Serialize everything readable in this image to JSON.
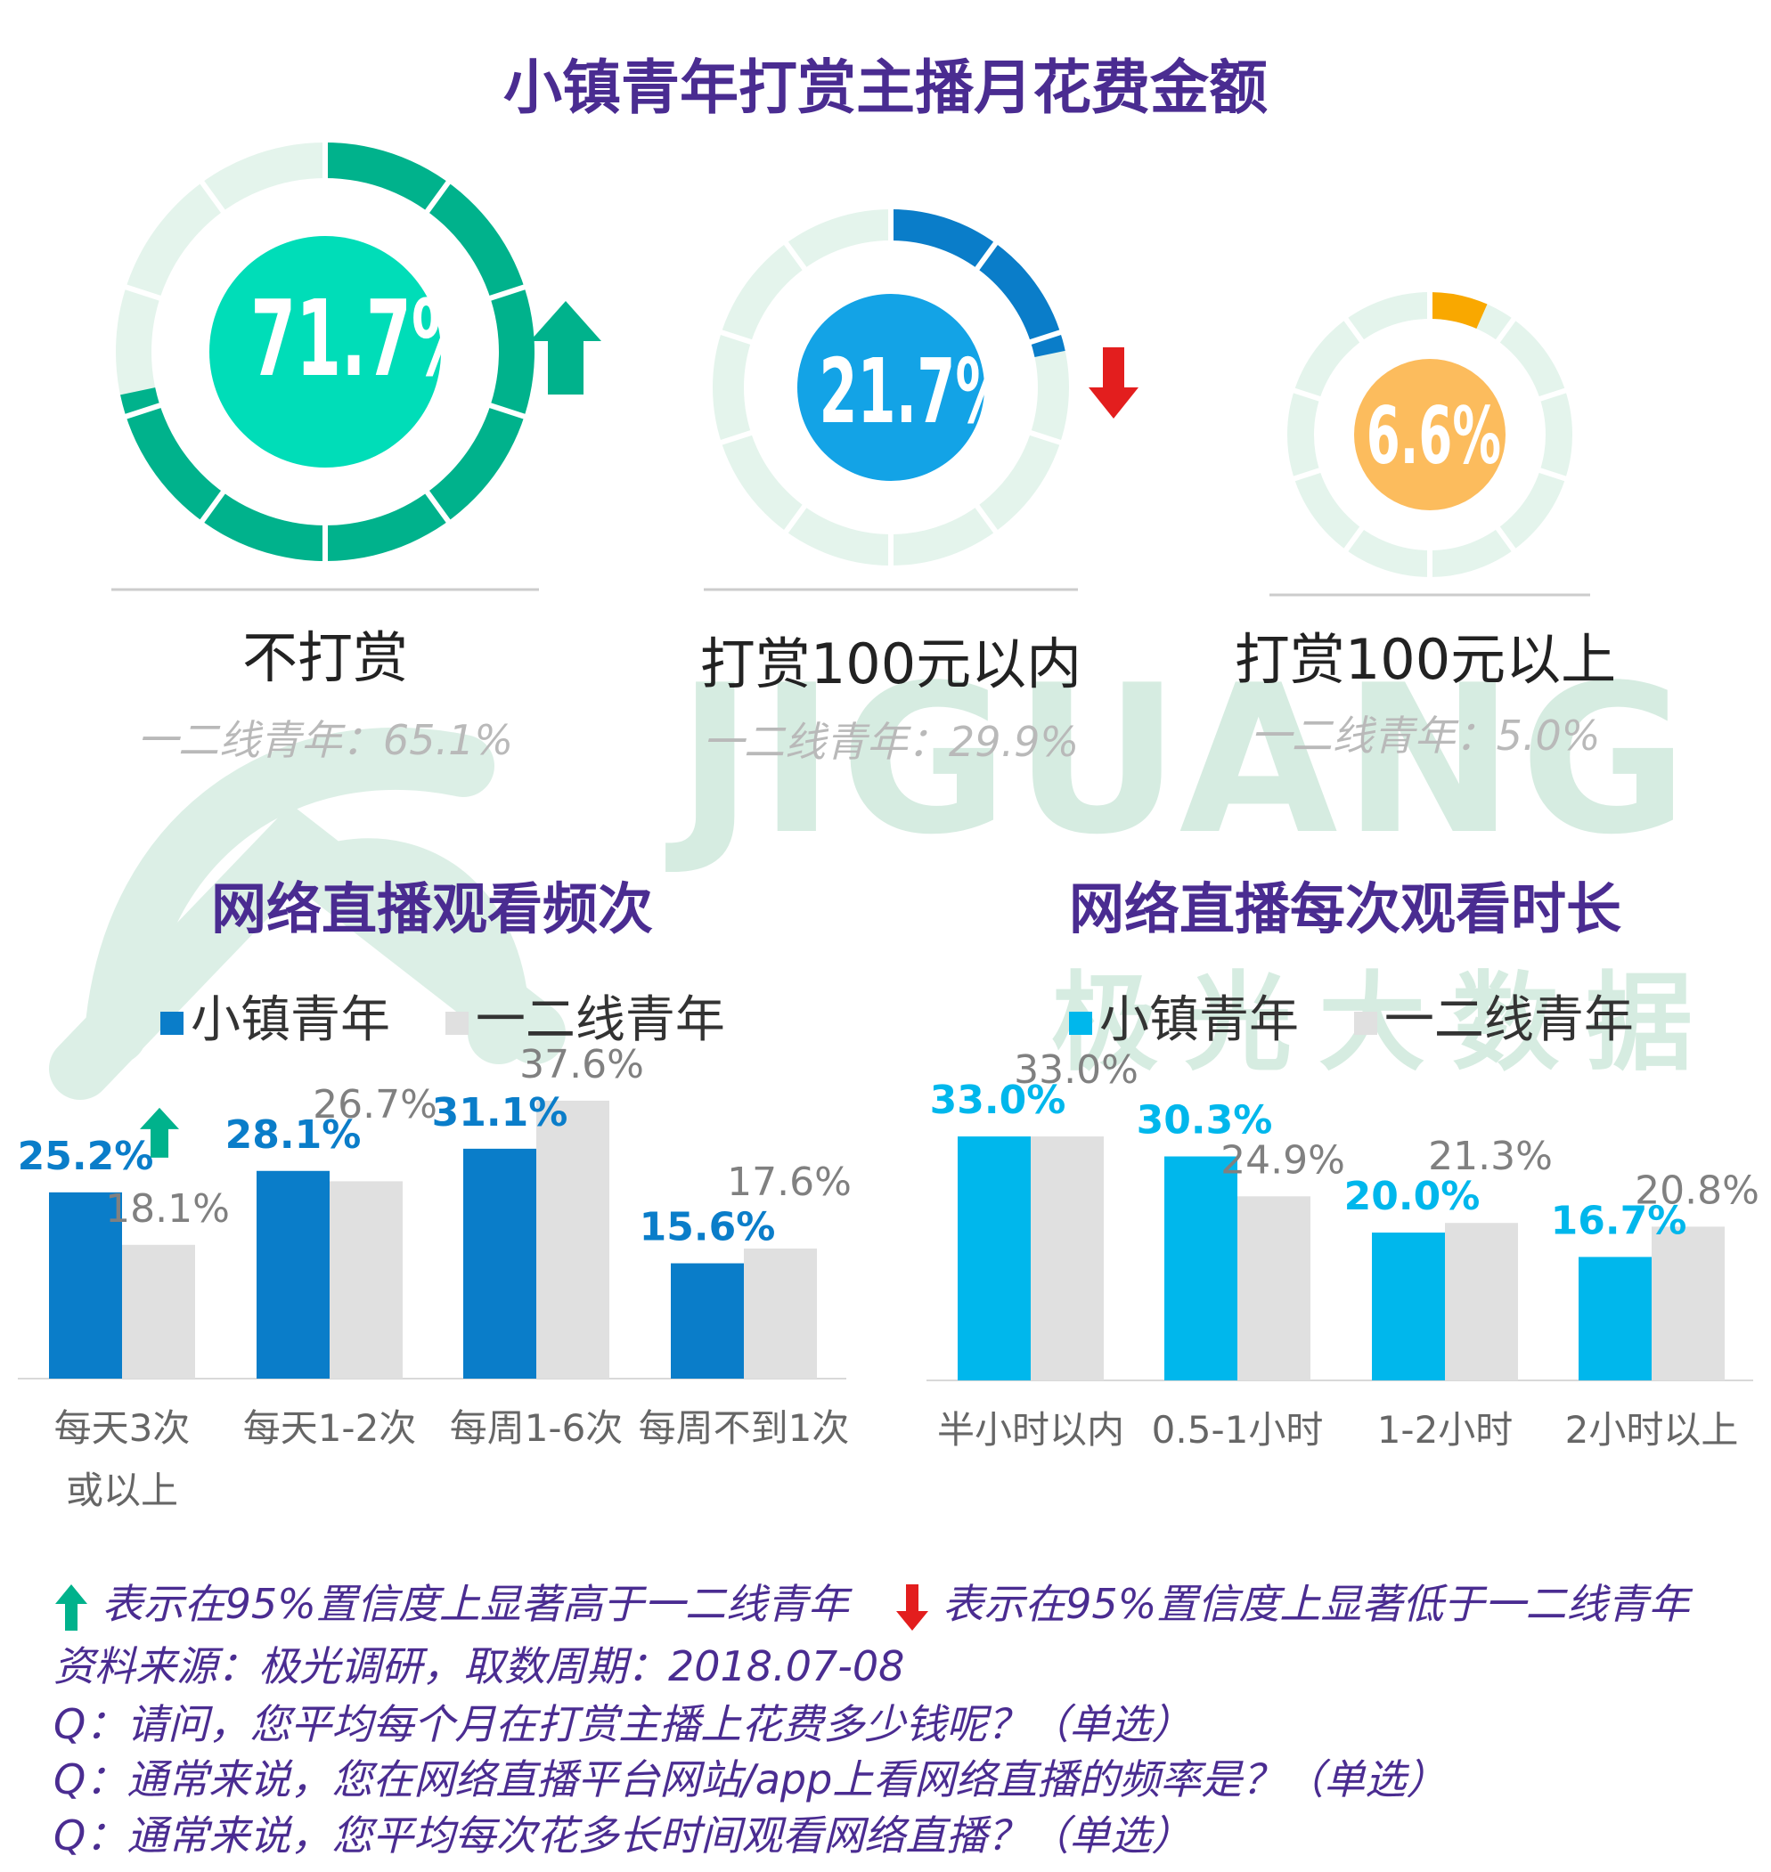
{
  "title": "小镇青年打赏主播月花费金额",
  "watermark": {
    "brand_en": "JIGUANG",
    "brand_cn": "极光大数据"
  },
  "colors": {
    "title": "#4a2c91",
    "green": "#00b28c",
    "green_light": "#e4f4ec",
    "green_center": "#00ddb8",
    "blue": "#0a7dc9",
    "blue_center": "#13a3e6",
    "orange": "#f9a800",
    "orange_center": "#fcbc5d",
    "bar_blue": "#0a7dc9",
    "bar_cyan": "#00b7ec",
    "bar_gray": "#e0e0e0",
    "up_arrow": "#00b28c",
    "down_arrow": "#e31e1e"
  },
  "donuts": [
    {
      "label": "不打赏",
      "value_label": "71.7%",
      "value": 71.7,
      "compare": "一二线青年：65.1%",
      "indicator": "up",
      "color_key": "green"
    },
    {
      "label": "打赏100元以内",
      "value_label": "21.7%",
      "value": 21.7,
      "compare": "一二线青年：29.9%",
      "indicator": "down",
      "color_key": "blue"
    },
    {
      "label": "打赏100元以上",
      "value_label": "6.6%",
      "value": 6.6,
      "compare": "一二线青年：5.0%",
      "indicator": "none",
      "color_key": "orange"
    }
  ],
  "chart_data": [
    {
      "type": "bar",
      "title": "网络直播观看频次",
      "categories": [
        "每天3次或以上",
        "每天1-2次",
        "每周1-6次",
        "每周不到1次"
      ],
      "category_lines": [
        [
          "每天3次",
          "或以上"
        ],
        [
          "每天1-2次"
        ],
        [
          "每周1-6次"
        ],
        [
          "每周不到1次"
        ]
      ],
      "series": [
        {
          "name": "小镇青年",
          "values": [
            25.2,
            28.1,
            31.1,
            15.6
          ],
          "labels": [
            "25.2%",
            "28.1%",
            "31.1%",
            "15.6%"
          ],
          "color": "#0a7dc9"
        },
        {
          "name": "一二线青年",
          "values": [
            18.1,
            26.7,
            37.6,
            17.6
          ],
          "labels": [
            "18.1%",
            "26.7%",
            "37.6%",
            "17.6%"
          ],
          "color": "#e0e0e0"
        }
      ],
      "significance": [
        "up",
        "none",
        "none",
        "none"
      ],
      "ylim": [
        0,
        40
      ],
      "grid": false,
      "legend": "top"
    },
    {
      "type": "bar",
      "title": "网络直播每次观看时长",
      "categories": [
        "半小时以内",
        "0.5-1小时",
        "1-2小时",
        "2小时以上"
      ],
      "category_lines": [
        [
          "半小时以内"
        ],
        [
          "0.5-1小时"
        ],
        [
          "1-2小时"
        ],
        [
          "2小时以上"
        ]
      ],
      "series": [
        {
          "name": "小镇青年",
          "values": [
            33.0,
            30.3,
            20.0,
            16.7
          ],
          "labels": [
            "33.0%",
            "30.3%",
            "20.0%",
            "16.7%"
          ],
          "color": "#00b7ec"
        },
        {
          "name": "一二线青年",
          "values": [
            33.0,
            24.9,
            21.3,
            20.8
          ],
          "labels": [
            "33.0%",
            "24.9%",
            "21.3%",
            "20.8%"
          ],
          "color": "#e0e0e0"
        }
      ],
      "significance": [
        "none",
        "none",
        "none",
        "none"
      ],
      "ylim": [
        0,
        40
      ],
      "grid": false,
      "legend": "top"
    }
  ],
  "notes": {
    "up_text": "表示在95%置信度上显著高于一二线青年",
    "down_text": "表示在95%置信度上显著低于一二线青年",
    "source": "资料来源：极光调研，取数周期：2018.07-08",
    "q1": "Q：请问，您平均每个月在打赏主播上花费多少钱呢？（单选）",
    "q2": "Q：通常来说，您在网络直播平台网站/app上看网络直播的频率是？（单选）",
    "q3": "Q：通常来说，您平均每次花多长时间观看网络直播？（单选）"
  }
}
